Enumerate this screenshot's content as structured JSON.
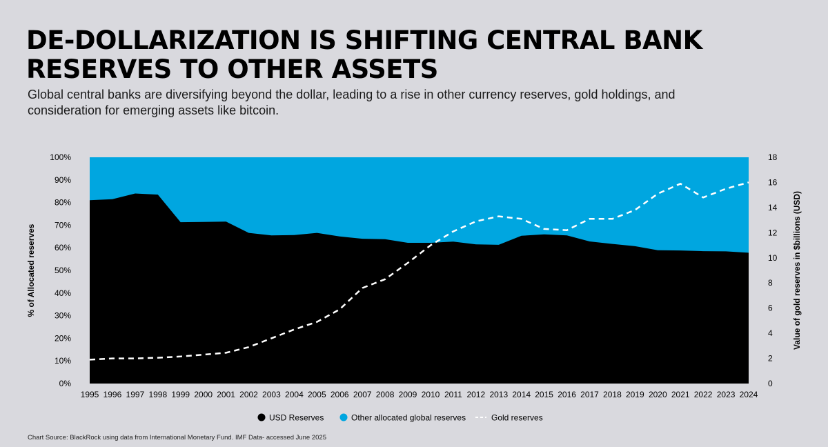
{
  "header": {
    "title": "DE-DOLLARIZATION IS SHIFTING CENTRAL BANK RESERVES TO OTHER ASSETS",
    "subtitle": "Global central banks are diversifying beyond the dollar, leading to a rise in other currency reserves, gold holdings, and consideration for emerging assets like bitcoin."
  },
  "footer": {
    "source": "Chart Source:  BlackRock using data from International Monetary Fund. IMF Data- accessed June 2025"
  },
  "colors": {
    "usd": "#000000",
    "other": "#00a6e0",
    "gold": "#ffffff"
  },
  "chart_data": {
    "type": "area",
    "x": [
      "1995",
      "1996",
      "1997",
      "1998",
      "1999",
      "2000",
      "2001",
      "2002",
      "2003",
      "2004",
      "2005",
      "2006",
      "2007",
      "2008",
      "2009",
      "2010",
      "2011",
      "2012",
      "2013",
      "2014",
      "2015",
      "2016",
      "2017",
      "2018",
      "2019",
      "2020",
      "2021",
      "2022",
      "2023",
      "2024"
    ],
    "series": [
      {
        "name": "USD Reserves",
        "axis": "left",
        "values": [
          81,
          81.5,
          84,
          83.5,
          71.3,
          71.4,
          71.6,
          66.6,
          65.5,
          65.6,
          66.6,
          65,
          64,
          63.8,
          62.2,
          62.2,
          62.7,
          61.5,
          61.3,
          65.3,
          65.9,
          65.5,
          62.8,
          61.7,
          60.7,
          58.9,
          58.8,
          58.5,
          58.4,
          57.8
        ]
      },
      {
        "name": "Other allocated global reserves",
        "axis": "left",
        "note": "fills remainder to 100%"
      },
      {
        "name": "Gold reserves",
        "axis": "right",
        "style": "dashed",
        "values": [
          1.9,
          2.0,
          2.0,
          2.05,
          2.15,
          2.3,
          2.45,
          2.9,
          3.6,
          4.3,
          4.9,
          5.9,
          7.6,
          8.3,
          9.6,
          11.0,
          12.1,
          12.9,
          13.3,
          13.1,
          12.3,
          12.2,
          13.1,
          13.1,
          13.8,
          15.1,
          15.9,
          14.8,
          15.5,
          16.0
        ]
      }
    ],
    "ylabel": "% of Allocated reserves",
    "ylim": [
      0,
      100
    ],
    "y_ticks": [
      "0%",
      "10%",
      "20%",
      "30%",
      "40%",
      "50%",
      "60%",
      "70%",
      "80%",
      "90%",
      "100%"
    ],
    "y2label": "Value of gold reserves in $billions (USD)",
    "y2lim": [
      0,
      18
    ],
    "y2_ticks": [
      "0",
      "2",
      "4",
      "6",
      "8",
      "10",
      "12",
      "14",
      "16",
      "18"
    ],
    "legend": [
      "USD Reserves",
      "Other allocated global reserves",
      "Gold reserves"
    ],
    "legend_position": "bottom-center"
  }
}
